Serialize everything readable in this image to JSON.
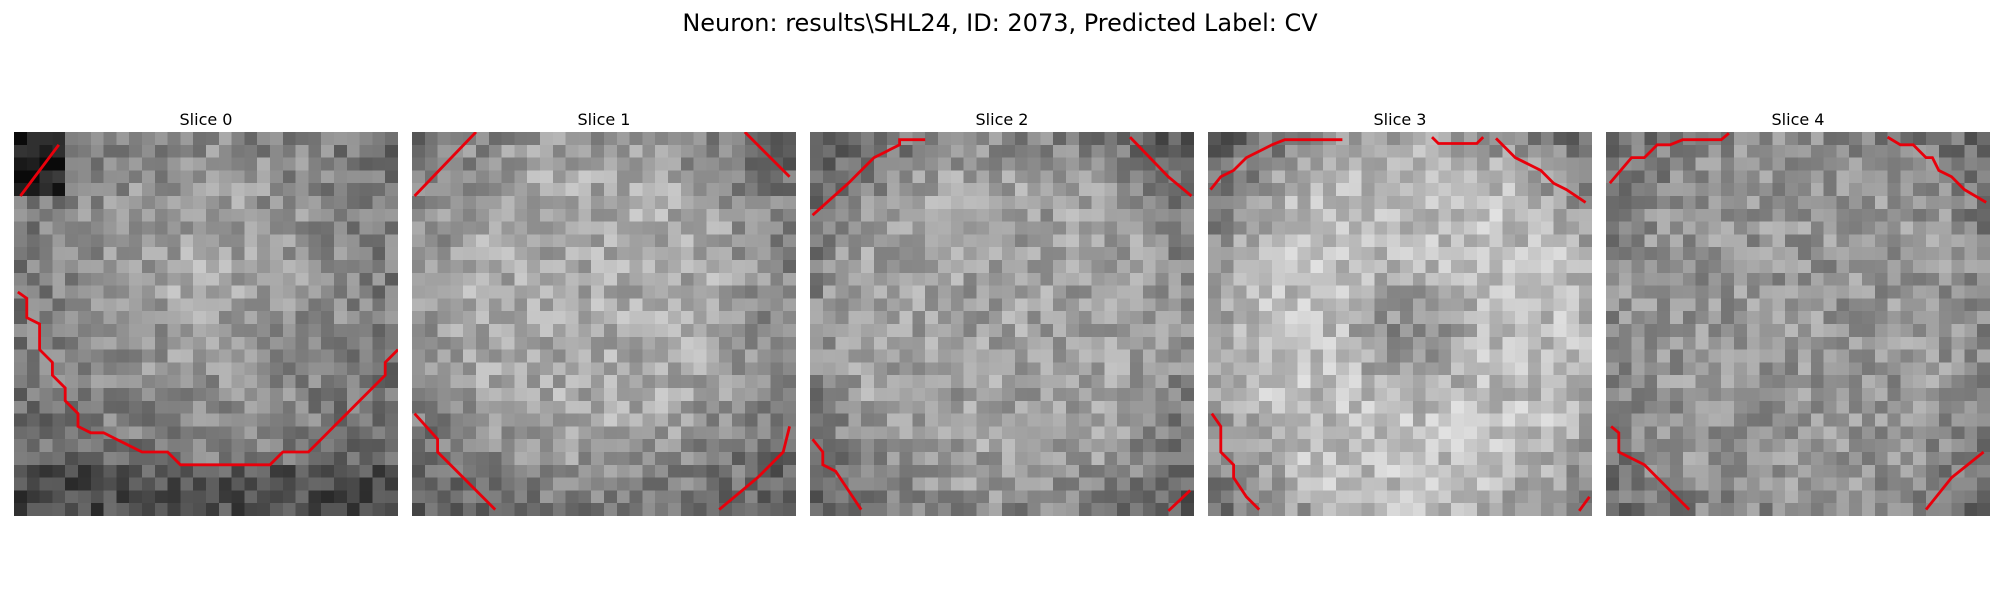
{
  "figure": {
    "title": "Neuron: results\\SHL24, ID: 2073, Predicted Label: CV"
  },
  "panels": [
    {
      "title": "Slice 0"
    },
    {
      "title": "Slice 1"
    },
    {
      "title": "Slice 2"
    },
    {
      "title": "Slice 3"
    },
    {
      "title": "Slice 4"
    }
  ],
  "colors": {
    "contour": "#e8000b",
    "image_cmap": "gray"
  }
}
